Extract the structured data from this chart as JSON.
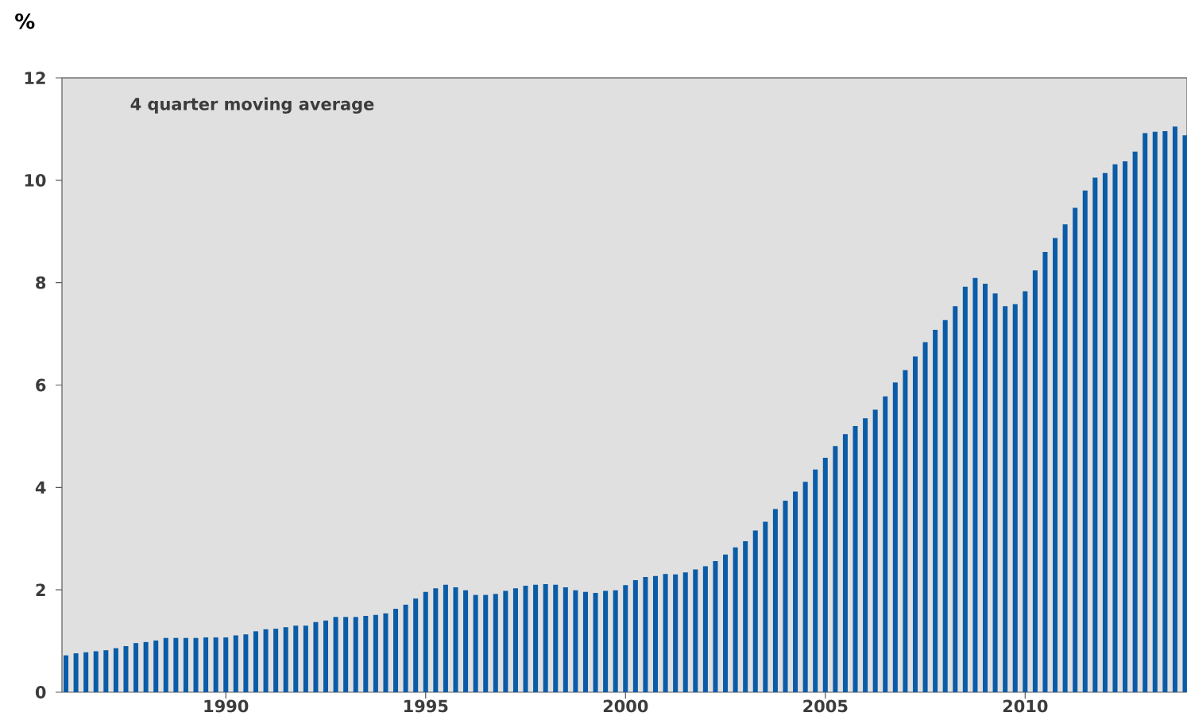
{
  "chart_data": {
    "type": "bar",
    "ylabel": "%",
    "annotations": [
      "4 quarter moving average"
    ],
    "x": [
      1986,
      1986.25,
      1986.5,
      1986.75,
      1987,
      1987.25,
      1987.5,
      1987.75,
      1988,
      1988.25,
      1988.5,
      1988.75,
      1989,
      1989.25,
      1989.5,
      1989.75,
      1990,
      1990.25,
      1990.5,
      1990.75,
      1991,
      1991.25,
      1991.5,
      1991.75,
      1992,
      1992.25,
      1992.5,
      1992.75,
      1993,
      1993.25,
      1993.5,
      1993.75,
      1994,
      1994.25,
      1994.5,
      1994.75,
      1995,
      1995.25,
      1995.5,
      1995.75,
      1996,
      1996.25,
      1996.5,
      1996.75,
      1997,
      1997.25,
      1997.5,
      1997.75,
      1998,
      1998.25,
      1998.5,
      1998.75,
      1999,
      1999.25,
      1999.5,
      1999.75,
      2000,
      2000.25,
      2000.5,
      2000.75,
      2001,
      2001.25,
      2001.5,
      2001.75,
      2002,
      2002.25,
      2002.5,
      2002.75,
      2003,
      2003.25,
      2003.5,
      2003.75,
      2004,
      2004.25,
      2004.5,
      2004.75,
      2005,
      2005.25,
      2005.5,
      2005.75,
      2006,
      2006.25,
      2006.5,
      2006.75,
      2007,
      2007.25,
      2007.5,
      2007.75,
      2008,
      2008.25,
      2008.5,
      2008.75,
      2009,
      2009.25,
      2009.5,
      2009.75,
      2010,
      2010.25,
      2010.5,
      2010.75,
      2011,
      2011.25,
      2011.5,
      2011.75,
      2012,
      2012.25,
      2012.5,
      2012.75,
      2013,
      2013.25,
      2013.5,
      2013.75,
      2014
    ],
    "values": [
      0.72,
      0.76,
      0.78,
      0.8,
      0.82,
      0.86,
      0.9,
      0.96,
      0.98,
      1.01,
      1.06,
      1.06,
      1.06,
      1.06,
      1.07,
      1.07,
      1.07,
      1.11,
      1.13,
      1.19,
      1.23,
      1.24,
      1.27,
      1.3,
      1.3,
      1.37,
      1.4,
      1.47,
      1.47,
      1.47,
      1.49,
      1.51,
      1.54,
      1.63,
      1.71,
      1.83,
      1.96,
      2.03,
      2.1,
      2.05,
      1.99,
      1.9,
      1.9,
      1.92,
      1.98,
      2.03,
      2.08,
      2.1,
      2.11,
      2.1,
      2.05,
      1.99,
      1.96,
      1.94,
      1.98,
      1.99,
      2.09,
      2.19,
      2.25,
      2.27,
      2.31,
      2.3,
      2.34,
      2.4,
      2.46,
      2.56,
      2.69,
      2.83,
      2.95,
      3.16,
      3.33,
      3.58,
      3.74,
      3.92,
      4.11,
      4.35,
      4.58,
      4.81,
      5.04,
      5.2,
      5.35,
      5.52,
      5.78,
      6.05,
      6.29,
      6.56,
      6.84,
      7.08,
      7.27,
      7.54,
      7.92,
      8.09,
      7.98,
      7.79,
      7.54,
      7.58,
      7.83,
      8.24,
      8.6,
      8.87,
      9.14,
      9.46,
      9.8,
      10.05,
      10.14,
      10.31,
      10.37,
      10.56,
      10.92,
      10.95,
      10.96,
      11.05,
      10.88
    ],
    "color": "#0a5ca8",
    "xlim": [
      1985.9,
      2014.05
    ],
    "ylim": [
      0,
      12
    ],
    "xticks": [
      1990,
      1995,
      2000,
      2005,
      2010
    ],
    "yticks": [
      0,
      2,
      4,
      6,
      8,
      10,
      12
    ]
  }
}
